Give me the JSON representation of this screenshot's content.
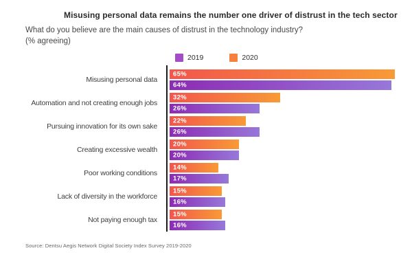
{
  "header": {
    "title": "Misusing personal data remains the number one driver of distrust in the tech sector",
    "subtitle": "What do you believe are the main causes of distrust in the technology industry?",
    "subtitle_note": "(% agreeing)"
  },
  "legend": {
    "items": [
      {
        "label": "2019",
        "color": "#a44bc9"
      },
      {
        "label": "2020",
        "color": "#f5813f"
      }
    ]
  },
  "chart_data": {
    "type": "bar",
    "orientation": "horizontal",
    "title": "Misusing personal data remains the number one driver of distrust in the tech sector",
    "xlabel": "% agreeing",
    "xlim": [
      0,
      65
    ],
    "grid": false,
    "legend_position": "top",
    "bar_order_top_to_bottom": [
      "2020",
      "2019"
    ],
    "value_suffix": "%",
    "categories": [
      "Misusing personal data",
      "Automation and not creating enough jobs",
      "Pursuing innovation for its own sake",
      "Creating excessive wealth",
      "Poor working conditions",
      "Lack of diversity in the workforce",
      "Not paying enough tax"
    ],
    "series": [
      {
        "name": "2020",
        "values": [
          65,
          32,
          22,
          20,
          14,
          15,
          15
        ],
        "gradient": [
          "#f2564c",
          "#f89a36"
        ]
      },
      {
        "name": "2019",
        "values": [
          64,
          26,
          26,
          20,
          17,
          16,
          16
        ],
        "gradient": [
          "#8d2bb4",
          "#9778d9"
        ]
      }
    ]
  },
  "source": "Source: Dentsu Aegis Network Digital Society Index Survey 2019-2020"
}
